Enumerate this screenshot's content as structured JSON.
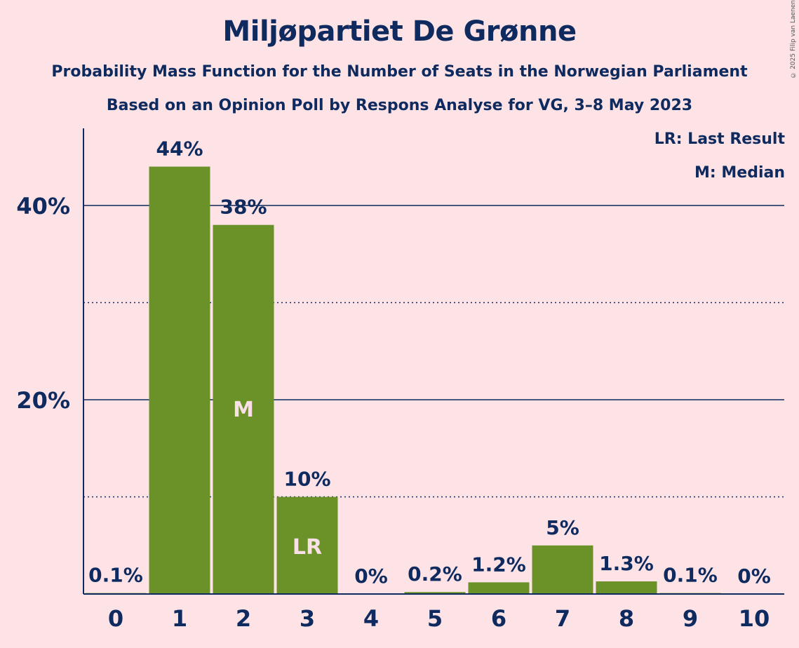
{
  "title": "Miljøpartiet De Grønne",
  "subtitle1": "Probability Mass Function for the Number of Seats in the Norwegian Parliament",
  "subtitle2": "Based on an Opinion Poll by Respons Analyse for VG, 3–8 May 2023",
  "copyright": "© 2025 Filip van Laenen",
  "legend": {
    "lr": "LR: Last Result",
    "m": "M: Median"
  },
  "colors": {
    "background": "#FDE3E6",
    "bar": "#6B9229",
    "text": "#0E2A5E",
    "in_bar_text": "#F8E0E6"
  },
  "chart_data": {
    "type": "bar",
    "categories": [
      "0",
      "1",
      "2",
      "3",
      "4",
      "5",
      "6",
      "7",
      "8",
      "9",
      "10"
    ],
    "values": [
      0.1,
      44,
      38,
      10,
      0,
      0.2,
      1.2,
      5,
      1.3,
      0.1,
      0
    ],
    "value_labels": [
      "0.1%",
      "44%",
      "38%",
      "10%",
      "0%",
      "0.2%",
      "1.2%",
      "5%",
      "1.3%",
      "0.1%",
      "0%"
    ],
    "bar_markers": {
      "2": "M",
      "3": "LR"
    },
    "title": "Miljøpartiet De Grønne",
    "xlabel": "",
    "ylabel": "",
    "yticks": [
      "20%",
      "40%"
    ],
    "ytick_values": [
      20,
      40
    ],
    "ylim": [
      0,
      48
    ],
    "grid": {
      "solid": [
        20,
        40
      ],
      "dotted": [
        10,
        30
      ]
    },
    "legend_position": "top-right"
  }
}
